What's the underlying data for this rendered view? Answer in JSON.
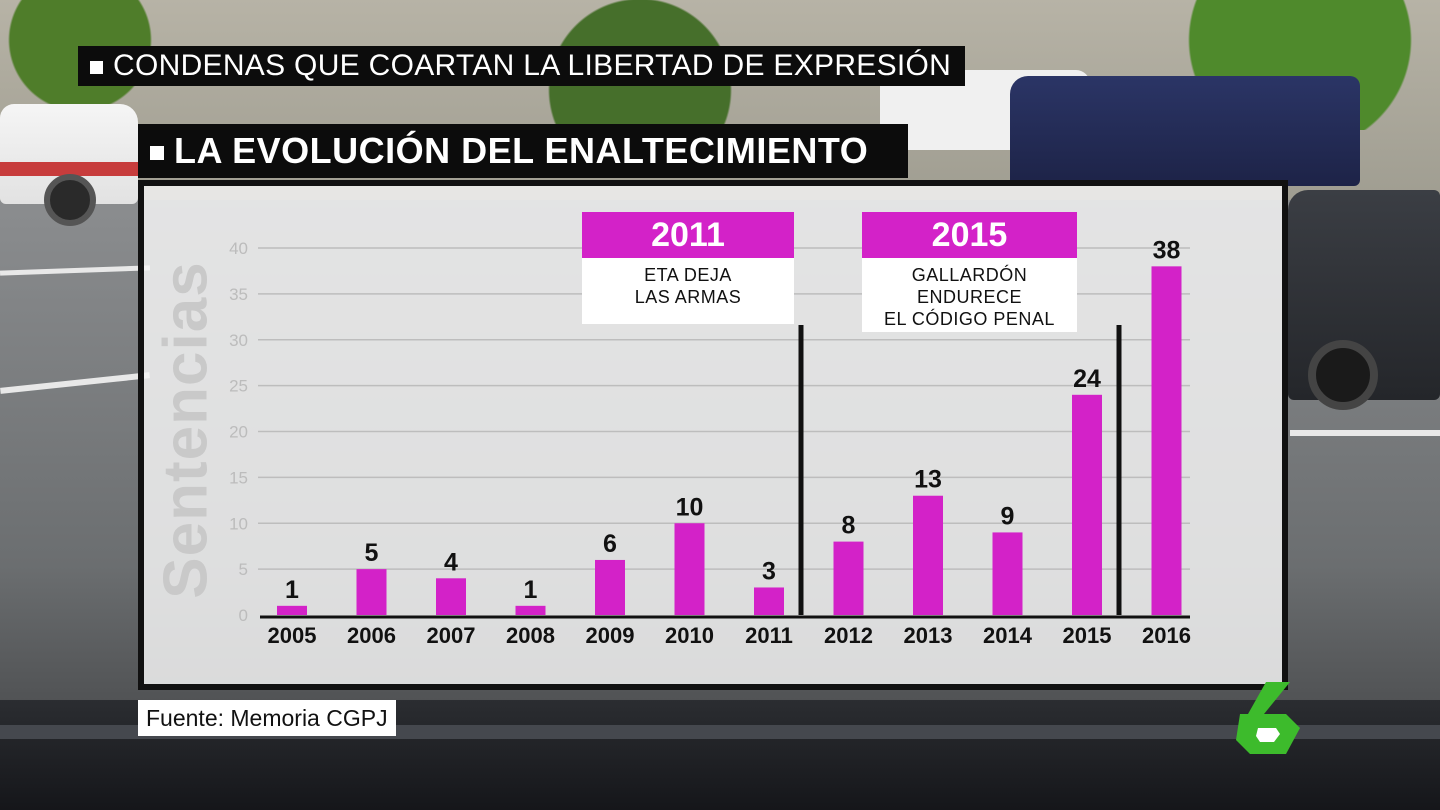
{
  "headlines": {
    "top": "CONDENAS QUE COARTAN LA LIBERTAD DE EXPRESIÓN",
    "section": "LA EVOLUCIÓN DEL ENALTECIMIENTO"
  },
  "annotations": [
    {
      "year": "2011",
      "lines": [
        "ETA DEJA",
        "LAS ARMAS"
      ]
    },
    {
      "year": "2015",
      "lines": [
        "GALLARDÓN",
        "ENDURECE",
        "EL CÓDIGO PENAL"
      ]
    }
  ],
  "source": "Fuente: Memoria CGPJ",
  "logo": {
    "text": "6",
    "color": "#3dbb2c"
  },
  "colors": {
    "bar": "#d322c8",
    "banner": "#d322c8",
    "headline_bg": "#0c0c0c"
  },
  "chart_data": {
    "type": "bar",
    "title": "LA EVOLUCIÓN DEL ENALTECIMIENTO",
    "xlabel": "",
    "ylabel": "Sentencias",
    "categories": [
      "2005",
      "2006",
      "2007",
      "2008",
      "2009",
      "2010",
      "2011",
      "2012",
      "2013",
      "2014",
      "2015",
      "2016"
    ],
    "values": [
      1,
      5,
      4,
      1,
      6,
      10,
      3,
      8,
      13,
      9,
      24,
      38
    ],
    "ylim": [
      0,
      40
    ],
    "yticks": [
      0,
      5,
      10,
      15,
      20,
      25,
      30,
      35,
      40
    ],
    "grid": true,
    "legend": "none",
    "markers": [
      "2011",
      "2015"
    ]
  }
}
